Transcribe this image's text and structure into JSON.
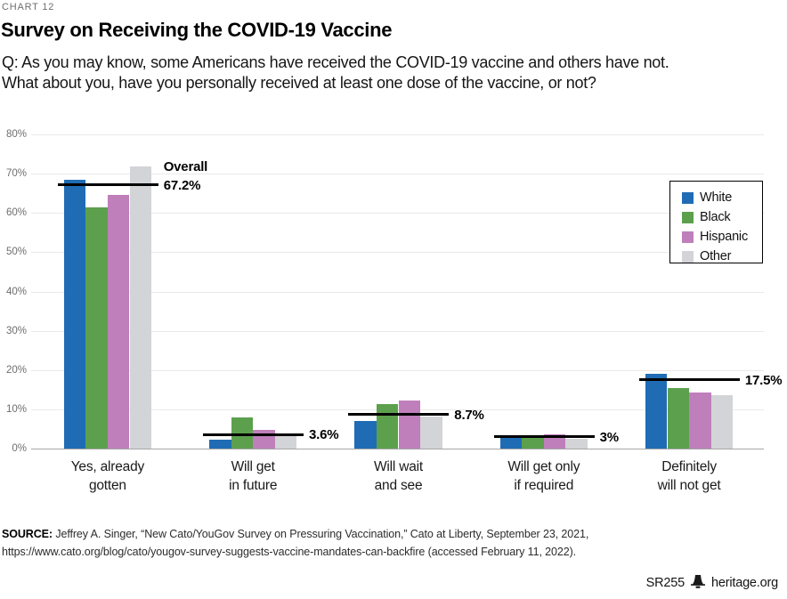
{
  "header": {
    "eyebrow": "CHART 12",
    "title": "Survey on Receiving the COVID-19 Vaccine",
    "question_line1": "Q: As you may know, some Americans have received the COVID-19 vaccine and others have not.",
    "question_line2": "What about you, have you personally received at least one dose of the vaccine, or not?"
  },
  "chart_data": {
    "type": "bar",
    "title": "Survey on Receiving the COVID-19 Vaccine",
    "xlabel": "",
    "ylabel": "",
    "ylim": [
      0,
      80
    ],
    "grid": true,
    "legend_position": "upper right",
    "yticks": [
      {
        "value": 0,
        "label": "0%"
      },
      {
        "value": 10,
        "label": "10%"
      },
      {
        "value": 20,
        "label": "20%"
      },
      {
        "value": 30,
        "label": "30%"
      },
      {
        "value": 40,
        "label": "40%"
      },
      {
        "value": 50,
        "label": "50%"
      },
      {
        "value": 60,
        "label": "60%"
      },
      {
        "value": 70,
        "label": "70%"
      },
      {
        "value": 80,
        "label": "80%"
      }
    ],
    "categories": [
      {
        "line1": "Yes, already",
        "line2": "gotten"
      },
      {
        "line1": "Will get",
        "line2": "in future"
      },
      {
        "line1": "Will wait",
        "line2": "and see"
      },
      {
        "line1": "Will get only",
        "line2": "if required"
      },
      {
        "line1": "Definitely",
        "line2": "will not get"
      }
    ],
    "series": [
      {
        "name": "White",
        "color": "#1f6cb4",
        "values": [
          68.4,
          2.3,
          7.1,
          3.0,
          19.1
        ]
      },
      {
        "name": "Black",
        "color": "#5ca04e",
        "values": [
          61.5,
          7.9,
          11.4,
          3.2,
          15.4
        ]
      },
      {
        "name": "Hispanic",
        "color": "#bf7fbb",
        "values": [
          64.7,
          4.7,
          12.2,
          3.7,
          14.2
        ]
      },
      {
        "name": "Other",
        "color": "#d3d4d7",
        "values": [
          71.8,
          3.5,
          8.1,
          2.6,
          13.5
        ]
      }
    ],
    "overall": {
      "name_label": "Overall",
      "values": [
        67.2,
        3.6,
        8.7,
        3,
        17.5
      ],
      "labels": [
        "67.2%",
        "3.6%",
        "8.7%",
        "3%",
        "17.5%"
      ]
    }
  },
  "source": {
    "label": "SOURCE:",
    "line1": " Jeffrey A. Singer, “New Cato/YouGov Survey on Pressuring Vaccination,” Cato at Liberty, September 23, 2021,",
    "line2": "https://www.cato.org/blog/cato/yougov-survey-suggests-vaccine-mandates-can-backfire (accessed February 11, 2022)."
  },
  "footer": {
    "doc_id": "SR255",
    "site": "heritage.org"
  },
  "colors": {
    "gridline": "#e9e9e9",
    "baseline": "#a6a6a6",
    "overall_line": "#000000",
    "tick_text": "#6e6e6e"
  }
}
